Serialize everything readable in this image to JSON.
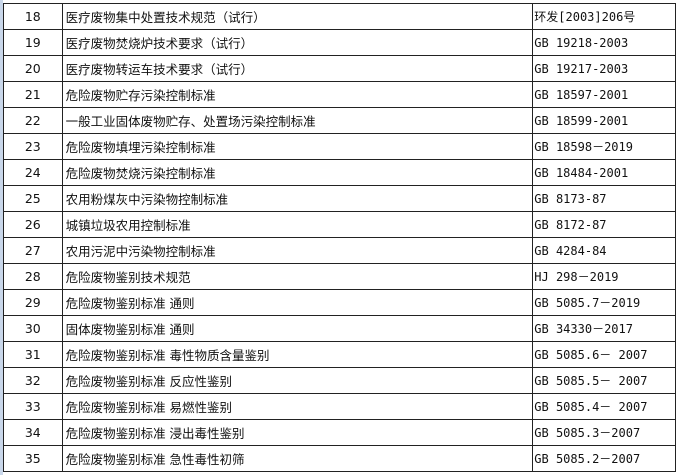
{
  "rows": [
    {
      "no": "18",
      "name": "医疗废物集中处置技术规范（试行）",
      "code": "环发[2003]206号"
    },
    {
      "no": "19",
      "name": "医疗废物焚烧炉技术要求（试行）",
      "code": "GB 19218-2003"
    },
    {
      "no": "20",
      "name": "医疗废物转运车技术要求（试行）",
      "code": "GB 19217-2003"
    },
    {
      "no": "21",
      "name": "危险废物贮存污染控制标准",
      "code": "GB 18597-2001"
    },
    {
      "no": "22",
      "name": "一般工业固体废物贮存、处置场污染控制标准",
      "code": "GB 18599-2001"
    },
    {
      "no": "23",
      "name": "危险废物填埋污染控制标准",
      "code": "GB 18598－2019"
    },
    {
      "no": "24",
      "name": "危险废物焚烧污染控制标准",
      "code": "GB 18484-2001"
    },
    {
      "no": "25",
      "name": "农用粉煤灰中污染物控制标准",
      "code": "GB 8173-87"
    },
    {
      "no": "26",
      "name": "城镇垃圾农用控制标准",
      "code": "GB 8172-87"
    },
    {
      "no": "27",
      "name": "农用污泥中污染物控制标准",
      "code": "GB 4284-84"
    },
    {
      "no": "28",
      "name": "危险废物鉴别技术规范",
      "code": "HJ 298－2019"
    },
    {
      "no": "29",
      "name": "危险废物鉴别标准 通则",
      "code": "GB 5085.7－2019"
    },
    {
      "no": "30",
      "name": "固体废物鉴别标准 通则",
      "code": "GB 34330－2017"
    },
    {
      "no": "31",
      "name": "危险废物鉴别标准 毒性物质含量鉴别",
      "code": "GB 5085.6－ 2007"
    },
    {
      "no": "32",
      "name": "危险废物鉴别标准 反应性鉴别",
      "code": "GB 5085.5－ 2007"
    },
    {
      "no": "33",
      "name": "危险废物鉴别标准 易燃性鉴别",
      "code": "GB 5085.4－ 2007"
    },
    {
      "no": "34",
      "name": "危险废物鉴别标准 浸出毒性鉴别",
      "code": "GB 5085.3－2007"
    },
    {
      "no": "35",
      "name": "危险废物鉴别标准 急性毒性初筛",
      "code": "GB 5085.2－2007"
    }
  ]
}
